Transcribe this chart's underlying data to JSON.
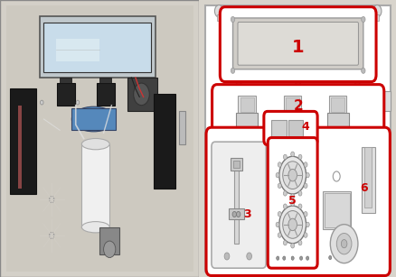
{
  "bg_color": "#d8d4cc",
  "white": "#ffffff",
  "red": "#cc0000",
  "light_gray": "#cccccc",
  "mid_gray": "#999999",
  "dark_gray": "#555555",
  "panel_bg": "#e8e6e0",
  "screen_gray": "#d0cdc8",
  "figsize": [
    4.39,
    3.07
  ],
  "dpi": 100,
  "photo_bg": "#c8c4bc",
  "photo_wall": "#d4d0c8",
  "photo_screen_bg": "#d8e4ee",
  "photo_screen_inner": "#c8dcea",
  "photo_black": "#1a1a1a",
  "photo_blue": "#5588bb",
  "photo_white_cyl": "#e8e8e8"
}
